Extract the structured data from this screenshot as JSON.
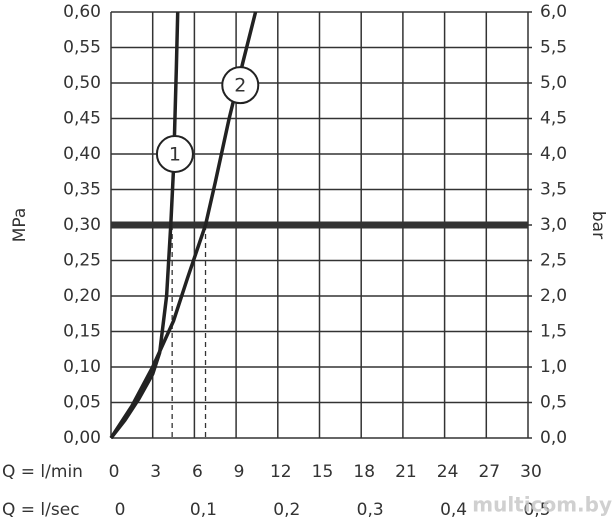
{
  "chart_data": {
    "type": "line",
    "y_label": "MPa",
    "y2_label": "bar",
    "x_label": "Q = l/min",
    "x2_label": "Q = l/sec",
    "xlim": [
      0,
      30
    ],
    "xticks": [
      0,
      3,
      6,
      9,
      12,
      15,
      18,
      21,
      24,
      27,
      30
    ],
    "x2lim": [
      0,
      0.5
    ],
    "x2ticks": [
      0,
      {
        "value": 0.1,
        "label": "0,1"
      },
      {
        "value": 0.2,
        "label": "0,2"
      },
      {
        "value": 0.3,
        "label": "0,3"
      },
      {
        "value": 0.4,
        "label": "0,4"
      },
      {
        "value": 0.5,
        "label": "0,5"
      }
    ],
    "ylim": [
      0,
      0.6
    ],
    "yticks": [
      {
        "value": 0,
        "label": "0,00"
      },
      {
        "value": 0.05,
        "label": "0,05"
      },
      {
        "value": 0.1,
        "label": "0,10"
      },
      {
        "value": 0.15,
        "label": "0,15"
      },
      {
        "value": 0.2,
        "label": "0,20"
      },
      {
        "value": 0.25,
        "label": "0,25"
      },
      {
        "value": 0.3,
        "label": "0,30"
      },
      {
        "value": 0.35,
        "label": "0,35"
      },
      {
        "value": 0.4,
        "label": "0,40"
      },
      {
        "value": 0.45,
        "label": "0,45"
      },
      {
        "value": 0.5,
        "label": "0,50"
      },
      {
        "value": 0.55,
        "label": "0,55"
      },
      {
        "value": 0.6,
        "label": "0,60"
      }
    ],
    "y2lim": [
      0,
      6
    ],
    "y2ticks": [
      {
        "value": 0,
        "label": "0,0"
      },
      {
        "value": 0.5,
        "label": "0,5"
      },
      {
        "value": 1,
        "label": "1,0"
      },
      {
        "value": 1.5,
        "label": "1,5"
      },
      {
        "value": 2,
        "label": "2,0"
      },
      {
        "value": 2.5,
        "label": "2,5"
      },
      {
        "value": 3,
        "label": "3,0"
      },
      {
        "value": 3.5,
        "label": "3,5"
      },
      {
        "value": 4,
        "label": "4,0"
      },
      {
        "value": 4.5,
        "label": "4,5"
      },
      {
        "value": 5,
        "label": "5,0"
      },
      {
        "value": 5.5,
        "label": "5,5"
      },
      {
        "value": 6,
        "label": "6,0"
      }
    ],
    "grid": true,
    "color": "#222222",
    "reference_y": 0.3,
    "reference_x": [
      4.4,
      6.8
    ],
    "series": [
      {
        "name": "1",
        "label_at": [
          4.6,
          0.4
        ],
        "x": [
          0,
          1,
          2,
          3,
          3.5,
          4,
          4.3,
          4.5,
          4.6,
          4.7,
          4.8
        ],
        "values": [
          0,
          0.025,
          0.055,
          0.09,
          0.12,
          0.2,
          0.3,
          0.38,
          0.45,
          0.52,
          0.6
        ]
      },
      {
        "name": "2",
        "label_at": [
          9.3,
          0.497
        ],
        "x": [
          0,
          1.5,
          3,
          4.5,
          5.5,
          6.8,
          7.5,
          8.5,
          9.5,
          10.4
        ],
        "values": [
          0,
          0.045,
          0.1,
          0.165,
          0.225,
          0.3,
          0.36,
          0.45,
          0.53,
          0.6
        ]
      }
    ],
    "watermark": "multicom.by"
  }
}
